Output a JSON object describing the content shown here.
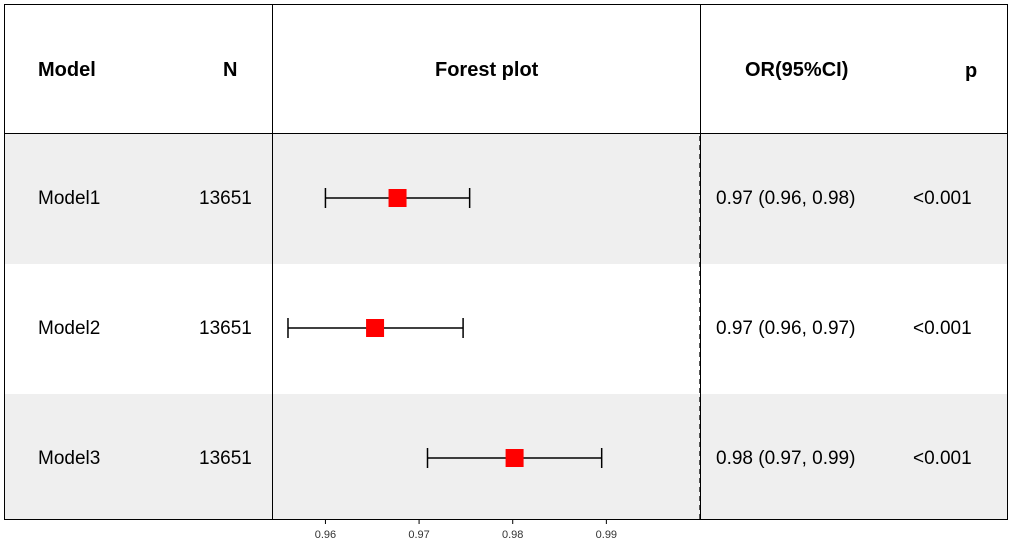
{
  "headers": {
    "model": "Model",
    "n": "N",
    "forest": "Forest plot",
    "or": "OR(95%CI)",
    "p": "p"
  },
  "rows": [
    {
      "model": "Model1",
      "n": "13651",
      "or_ci": "0.97 (0.96, 0.98)",
      "p": "<0.001"
    },
    {
      "model": "Model2",
      "n": "13651",
      "or_ci": "0.97 (0.96, 0.97)",
      "p": "<0.001"
    },
    {
      "model": "Model3",
      "n": "13651",
      "or_ci": "0.98 (0.97, 0.99)",
      "p": "<0.001"
    }
  ],
  "colors": {
    "marker": "#ff0000",
    "row_shade": "#efefef",
    "line": "#000000"
  },
  "chart_data": {
    "type": "forest",
    "categories": [
      "Model1",
      "Model2",
      "Model3"
    ],
    "estimate": [
      0.9677,
      0.9653,
      0.9802
    ],
    "lower": [
      0.96,
      0.956,
      0.9709
    ],
    "upper": [
      0.9754,
      0.9747,
      0.9895
    ],
    "reference_line": 1.0,
    "xlim": [
      0.9544,
      1.0
    ],
    "x_ticks": [
      0.96,
      0.97,
      0.98,
      0.99
    ],
    "x_tick_labels": [
      "0.96",
      "0.97",
      "0.98",
      "0.99"
    ],
    "marker_shape": "square",
    "xlabel": "",
    "ylabel": ""
  }
}
